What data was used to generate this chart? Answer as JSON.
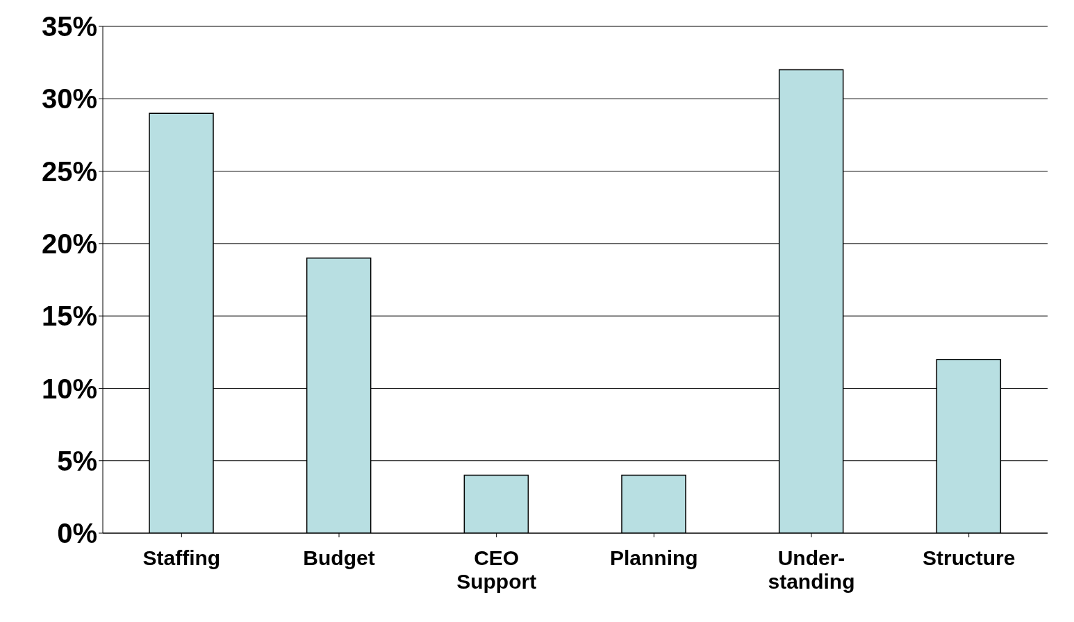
{
  "chart_data": {
    "type": "bar",
    "categories": [
      "Staffing",
      "Budget",
      "CEO Support",
      "Planning",
      "Under-standing",
      "Structure"
    ],
    "values": [
      29,
      19,
      4,
      4,
      32,
      12
    ],
    "color": "#b8dfe2",
    "ylim": [
      0,
      35
    ],
    "yticks": [
      {
        "value": 0,
        "label": "0%"
      },
      {
        "value": 5,
        "label": "5%"
      },
      {
        "value": 10,
        "label": "10%"
      },
      {
        "value": 15,
        "label": "15%"
      },
      {
        "value": 20,
        "label": "20%"
      },
      {
        "value": 25,
        "label": "25%"
      },
      {
        "value": 30,
        "label": "30%"
      },
      {
        "value": 35,
        "label": "35%"
      }
    ],
    "grid": "y"
  }
}
